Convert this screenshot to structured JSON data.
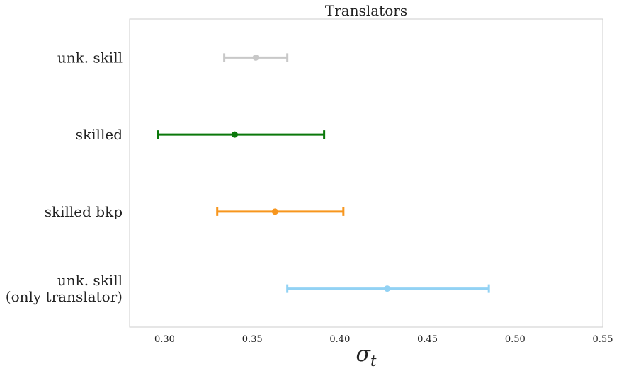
{
  "chart_data": {
    "type": "errorbar",
    "title": "Translators",
    "xlabel": "σ_t",
    "categories": [
      "unk. skill",
      "skilled",
      "skilled bkp",
      "unk. skill\n(only translator)"
    ],
    "values": [
      0.352,
      0.34,
      0.363,
      0.427
    ],
    "lower": [
      0.334,
      0.296,
      0.33,
      0.37
    ],
    "upper": [
      0.37,
      0.391,
      0.402,
      0.485
    ],
    "colors": [
      "#c8c8c8",
      "#0a780a",
      "#f7961e",
      "#92d2f4"
    ],
    "xlim": [
      0.28,
      0.55
    ],
    "xticks": [
      {
        "value": 0.3,
        "label": "0.30"
      },
      0.35,
      {
        "value": 0.4,
        "label": "0.40"
      },
      0.45,
      {
        "value": 0.5,
        "label": "0.50"
      },
      0.55
    ],
    "grid": false
  }
}
